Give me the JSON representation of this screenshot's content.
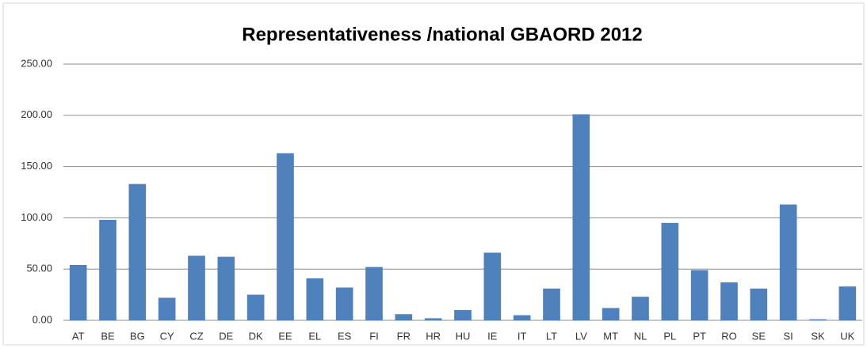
{
  "chart_data": {
    "type": "bar",
    "title": "Representativeness /national GBAORD 2012",
    "categories": [
      "AT",
      "BE",
      "BG",
      "CY",
      "CZ",
      "DE",
      "DK",
      "EE",
      "EL",
      "ES",
      "FI",
      "FR",
      "HR",
      "HU",
      "IE",
      "IT",
      "LT",
      "LV",
      "MT",
      "NL",
      "PL",
      "PT",
      "RO",
      "SE",
      "SI",
      "SK",
      "UK"
    ],
    "values": [
      54,
      98,
      133,
      22,
      63,
      62,
      25,
      163,
      41,
      32,
      52,
      6,
      2,
      10,
      66,
      5,
      31,
      201,
      12,
      23,
      95,
      49,
      37,
      31,
      113,
      1,
      33
    ],
    "color": "#4f81bd",
    "ylim": [
      0,
      250
    ],
    "yticks": [
      {
        "value": 0,
        "label": "0.00"
      },
      {
        "value": 50,
        "label": "50.00"
      },
      {
        "value": 100,
        "label": "100.00"
      },
      {
        "value": 150,
        "label": "150.00"
      },
      {
        "value": 200,
        "label": "200.00"
      },
      {
        "value": 250,
        "label": "250.00"
      }
    ],
    "grid": true
  }
}
